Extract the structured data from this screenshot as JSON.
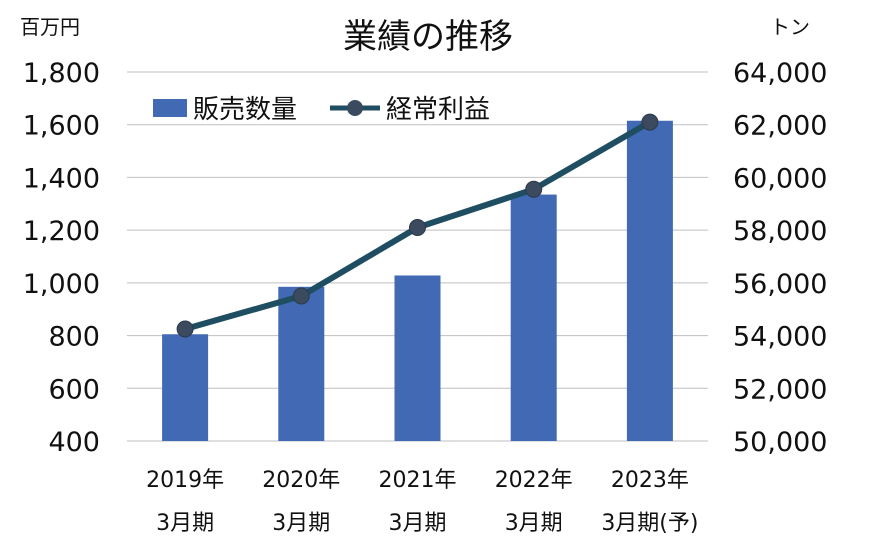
{
  "chart_data": {
    "type": "bar",
    "title": "業績の推移",
    "left_unit": "百万円",
    "right_unit": "トン",
    "categories": [
      [
        "2019年",
        "3月期"
      ],
      [
        "2020年",
        "3月期"
      ],
      [
        "2021年",
        "3月期"
      ],
      [
        "2022年",
        "3月期"
      ],
      [
        "2023年",
        "3月期(予)"
      ]
    ],
    "left_axis": {
      "ticks": [
        "400",
        "600",
        "800",
        "1,000",
        "1,200",
        "1,400",
        "1,600",
        "1,800"
      ],
      "ylim": [
        400,
        1800
      ]
    },
    "right_axis": {
      "ticks": [
        "50,000",
        "52,000",
        "54,000",
        "56,000",
        "58,000",
        "60,000",
        "62,000",
        "64,000"
      ],
      "ylim": [
        50000,
        64000
      ]
    },
    "grid": true,
    "legend_position": "top-left",
    "series": [
      {
        "name": "販売数量",
        "type": "bar",
        "axis": "left",
        "color": "#4169b4",
        "values": [
          805,
          985,
          1028,
          1335,
          1615
        ]
      },
      {
        "name": "経常利益",
        "type": "line",
        "axis": "right",
        "color": "#1f4e63",
        "marker_color": "#3b4a5e",
        "values": [
          54250,
          55500,
          58100,
          59550,
          62100
        ]
      }
    ]
  }
}
